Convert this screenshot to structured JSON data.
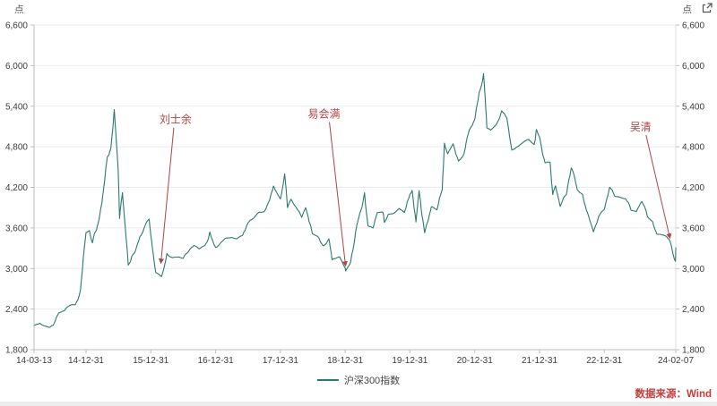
{
  "page": {
    "unit_left": "点",
    "unit_right": "点",
    "source": "数据来源：Wind",
    "icons": {
      "top_right": "expand-icon"
    }
  },
  "chart_data": {
    "type": "line",
    "title": "",
    "xlabel": "",
    "ylabel": "点",
    "legend": [
      "沪深300指数"
    ],
    "legend_position": "bottom-center",
    "grid": true,
    "ylim": [
      1800,
      6600
    ],
    "y_ticks": [
      "1,800",
      "2,400",
      "3,000",
      "3,600",
      "4,200",
      "4,800",
      "5,400",
      "6,000",
      "6,600"
    ],
    "x_range": [
      "14-03-13",
      "24-02-07"
    ],
    "x_ticks": [
      "14-03-13",
      "14-12-31",
      "15-12-31",
      "16-12-31",
      "17-12-31",
      "18-12-31",
      "19-12-31",
      "20-12-31",
      "21-12-31",
      "22-12-31",
      "24-02-07"
    ],
    "line_color": "#2a7a6e",
    "annotation_color": "#b04343",
    "source_color": "#c63c3c",
    "annotations": [
      {
        "label": "刘士余",
        "text_at": [
          "16-05-19",
          5150
        ],
        "tip": [
          "16-02-26",
          3080
        ]
      },
      {
        "label": "易会满",
        "text_at": [
          "18-09-03",
          5230
        ],
        "tip": [
          "19-01-02",
          3040
        ]
      },
      {
        "label": "吴清",
        "text_at": [
          "23-07-24",
          5040
        ],
        "tip": [
          "24-01-05",
          3450
        ]
      }
    ],
    "series": [
      {
        "name": "沪深300指数",
        "points": [
          [
            "14-03-13",
            2160
          ],
          [
            "14-04-15",
            2190
          ],
          [
            "14-05-10",
            2150
          ],
          [
            "14-06-10",
            2130
          ],
          [
            "14-06-30",
            2165
          ],
          [
            "14-07-31",
            2345
          ],
          [
            "14-08-31",
            2375
          ],
          [
            "14-09-30",
            2455
          ],
          [
            "14-10-31",
            2465
          ],
          [
            "14-11-30",
            2680
          ],
          [
            "14-12-31",
            3534
          ],
          [
            "15-01-20",
            3560
          ],
          [
            "15-02-05",
            3380
          ],
          [
            "15-02-28",
            3570
          ],
          [
            "15-03-31",
            3980
          ],
          [
            "15-04-30",
            4650
          ],
          [
            "15-05-20",
            4780
          ],
          [
            "15-06-08",
            5350
          ],
          [
            "15-06-30",
            4470
          ],
          [
            "15-07-08",
            3740
          ],
          [
            "15-07-24",
            4120
          ],
          [
            "15-08-26",
            3050
          ],
          [
            "15-09-15",
            3180
          ],
          [
            "15-09-30",
            3230
          ],
          [
            "15-10-31",
            3470
          ],
          [
            "15-11-30",
            3640
          ],
          [
            "15-12-22",
            3730
          ],
          [
            "16-01-28",
            2940
          ],
          [
            "16-02-29",
            2880
          ],
          [
            "16-03-31",
            3220
          ],
          [
            "16-04-30",
            3160
          ],
          [
            "16-05-31",
            3170
          ],
          [
            "16-06-30",
            3150
          ],
          [
            "16-07-31",
            3250
          ],
          [
            "16-08-31",
            3340
          ],
          [
            "16-09-30",
            3290
          ],
          [
            "16-10-31",
            3340
          ],
          [
            "16-11-28",
            3540
          ],
          [
            "16-12-31",
            3310
          ],
          [
            "17-01-31",
            3390
          ],
          [
            "17-02-28",
            3450
          ],
          [
            "17-03-31",
            3460
          ],
          [
            "17-04-30",
            3440
          ],
          [
            "17-05-31",
            3490
          ],
          [
            "17-06-30",
            3670
          ],
          [
            "17-07-31",
            3740
          ],
          [
            "17-08-31",
            3830
          ],
          [
            "17-09-30",
            3840
          ],
          [
            "17-10-31",
            4010
          ],
          [
            "17-11-22",
            4220
          ],
          [
            "17-12-31",
            4030
          ],
          [
            "18-01-24",
            4400
          ],
          [
            "18-02-09",
            3900
          ],
          [
            "18-02-28",
            4024
          ],
          [
            "18-03-31",
            3900
          ],
          [
            "18-04-30",
            3757
          ],
          [
            "18-05-22",
            3900
          ],
          [
            "18-06-30",
            3511
          ],
          [
            "18-07-31",
            3470
          ],
          [
            "18-08-31",
            3334
          ],
          [
            "18-09-30",
            3439
          ],
          [
            "18-10-18",
            3130
          ],
          [
            "18-11-30",
            3173
          ],
          [
            "18-12-31",
            3011
          ],
          [
            "19-01-03",
            2964
          ],
          [
            "19-01-31",
            3100
          ],
          [
            "19-02-28",
            3545
          ],
          [
            "19-03-31",
            3872
          ],
          [
            "19-04-19",
            4120
          ],
          [
            "19-05-09",
            3630
          ],
          [
            "19-06-06",
            3600
          ],
          [
            "19-06-30",
            3825
          ],
          [
            "19-07-31",
            3835
          ],
          [
            "19-08-09",
            3680
          ],
          [
            "19-08-31",
            3800
          ],
          [
            "19-09-30",
            3815
          ],
          [
            "19-10-31",
            3886
          ],
          [
            "19-11-30",
            3828
          ],
          [
            "19-12-31",
            4097
          ],
          [
            "20-01-13",
            4155
          ],
          [
            "20-02-03",
            3688
          ],
          [
            "20-02-21",
            4150
          ],
          [
            "20-03-23",
            3530
          ],
          [
            "20-04-30",
            3913
          ],
          [
            "20-05-31",
            3867
          ],
          [
            "20-06-30",
            4164
          ],
          [
            "20-07-13",
            4853
          ],
          [
            "20-07-31",
            4695
          ],
          [
            "20-08-31",
            4844
          ],
          [
            "20-09-30",
            4587
          ],
          [
            "20-10-31",
            4695
          ],
          [
            "20-11-30",
            5047
          ],
          [
            "20-12-31",
            5211
          ],
          [
            "21-01-25",
            5606
          ],
          [
            "21-02-18",
            5880
          ],
          [
            "21-03-09",
            5080
          ],
          [
            "21-03-31",
            5048
          ],
          [
            "21-04-30",
            5124
          ],
          [
            "21-05-31",
            5332
          ],
          [
            "21-06-30",
            5224
          ],
          [
            "21-07-28",
            4751
          ],
          [
            "21-08-31",
            4806
          ],
          [
            "21-09-30",
            4866
          ],
          [
            "21-10-31",
            4909
          ],
          [
            "21-11-30",
            4832
          ],
          [
            "21-12-13",
            5055
          ],
          [
            "21-12-31",
            4940
          ],
          [
            "22-01-31",
            4563
          ],
          [
            "22-02-28",
            4573
          ],
          [
            "22-03-15",
            4093
          ],
          [
            "22-03-31",
            4223
          ],
          [
            "22-04-26",
            3918
          ],
          [
            "22-05-31",
            4092
          ],
          [
            "22-06-28",
            4485
          ],
          [
            "22-07-31",
            4170
          ],
          [
            "22-08-31",
            4093
          ],
          [
            "22-09-30",
            3805
          ],
          [
            "22-10-31",
            3541
          ],
          [
            "22-11-30",
            3775
          ],
          [
            "22-12-31",
            3872
          ],
          [
            "23-01-30",
            4201
          ],
          [
            "23-02-28",
            4069
          ],
          [
            "23-03-31",
            4051
          ],
          [
            "23-04-30",
            4029
          ],
          [
            "23-05-31",
            3862
          ],
          [
            "23-06-30",
            3842
          ],
          [
            "23-07-31",
            3991
          ],
          [
            "23-08-31",
            3766
          ],
          [
            "23-09-30",
            3690
          ],
          [
            "23-10-23",
            3510
          ],
          [
            "23-11-30",
            3496
          ],
          [
            "23-12-31",
            3431
          ],
          [
            "24-01-22",
            3218
          ],
          [
            "24-02-05",
            3108
          ],
          [
            "24-02-07",
            3311
          ]
        ]
      }
    ]
  }
}
